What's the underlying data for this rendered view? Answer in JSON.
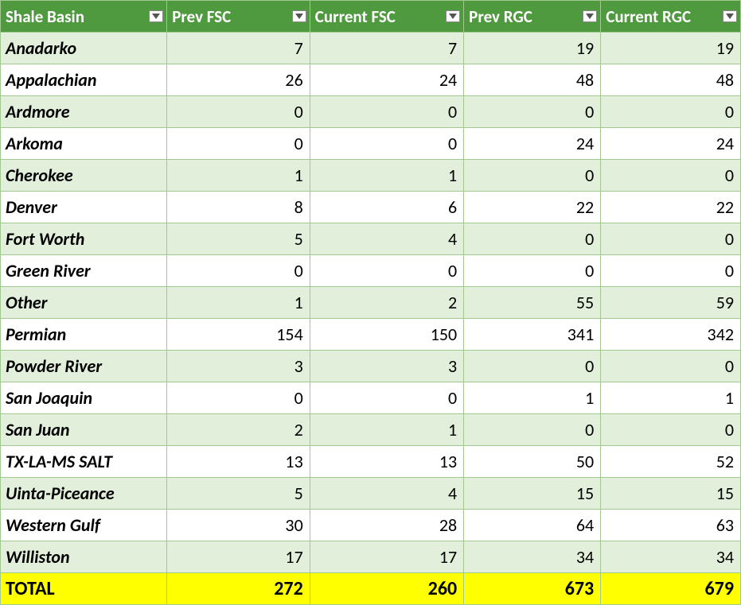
{
  "table": {
    "type": "table",
    "col_widths_pct": [
      22.5,
      19.3,
      20.8,
      18.5,
      18.9
    ],
    "header_bg": "#4f9a3f",
    "header_fg": "#ffffff",
    "row_even_bg": "#e2efda",
    "row_odd_bg": "#ffffff",
    "border_color": "#a0c88f",
    "total_bg": "#ffff00",
    "total_fg": "#000000",
    "body_font_size_pt": 22,
    "header_font_size_pt": 21,
    "total_font_size_pt": 24,
    "columns": [
      "Shale Basin",
      "Prev FSC",
      "Current FSC",
      "Prev RGC",
      "Current RGC"
    ],
    "rows": [
      {
        "basin": "Anadarko",
        "prev_fsc": 7,
        "cur_fsc": 7,
        "prev_rgc": 19,
        "cur_rgc": 19
      },
      {
        "basin": "Appalachian",
        "prev_fsc": 26,
        "cur_fsc": 24,
        "prev_rgc": 48,
        "cur_rgc": 48
      },
      {
        "basin": "Ardmore",
        "prev_fsc": 0,
        "cur_fsc": 0,
        "prev_rgc": 0,
        "cur_rgc": 0
      },
      {
        "basin": "Arkoma",
        "prev_fsc": 0,
        "cur_fsc": 0,
        "prev_rgc": 24,
        "cur_rgc": 24
      },
      {
        "basin": "Cherokee",
        "prev_fsc": 1,
        "cur_fsc": 1,
        "prev_rgc": 0,
        "cur_rgc": 0
      },
      {
        "basin": "Denver",
        "prev_fsc": 8,
        "cur_fsc": 6,
        "prev_rgc": 22,
        "cur_rgc": 22
      },
      {
        "basin": "Fort Worth",
        "prev_fsc": 5,
        "cur_fsc": 4,
        "prev_rgc": 0,
        "cur_rgc": 0
      },
      {
        "basin": "Green River",
        "prev_fsc": 0,
        "cur_fsc": 0,
        "prev_rgc": 0,
        "cur_rgc": 0
      },
      {
        "basin": "Other",
        "prev_fsc": 1,
        "cur_fsc": 2,
        "prev_rgc": 55,
        "cur_rgc": 59
      },
      {
        "basin": "Permian",
        "prev_fsc": 154,
        "cur_fsc": 150,
        "prev_rgc": 341,
        "cur_rgc": 342
      },
      {
        "basin": "Powder River",
        "prev_fsc": 3,
        "cur_fsc": 3,
        "prev_rgc": 0,
        "cur_rgc": 0
      },
      {
        "basin": "San Joaquin",
        "prev_fsc": 0,
        "cur_fsc": 0,
        "prev_rgc": 1,
        "cur_rgc": 1
      },
      {
        "basin": "San Juan",
        "prev_fsc": 2,
        "cur_fsc": 1,
        "prev_rgc": 0,
        "cur_rgc": 0
      },
      {
        "basin": "TX-LA-MS SALT",
        "prev_fsc": 13,
        "cur_fsc": 13,
        "prev_rgc": 50,
        "cur_rgc": 52
      },
      {
        "basin": "Uinta-Piceance",
        "prev_fsc": 5,
        "cur_fsc": 4,
        "prev_rgc": 15,
        "cur_rgc": 15
      },
      {
        "basin": "Western Gulf",
        "prev_fsc": 30,
        "cur_fsc": 28,
        "prev_rgc": 64,
        "cur_rgc": 63
      },
      {
        "basin": "Williston",
        "prev_fsc": 17,
        "cur_fsc": 17,
        "prev_rgc": 34,
        "cur_rgc": 34
      }
    ],
    "totals": {
      "label": "TOTAL",
      "prev_fsc": 272,
      "cur_fsc": 260,
      "prev_rgc": 673,
      "cur_rgc": 679
    }
  }
}
